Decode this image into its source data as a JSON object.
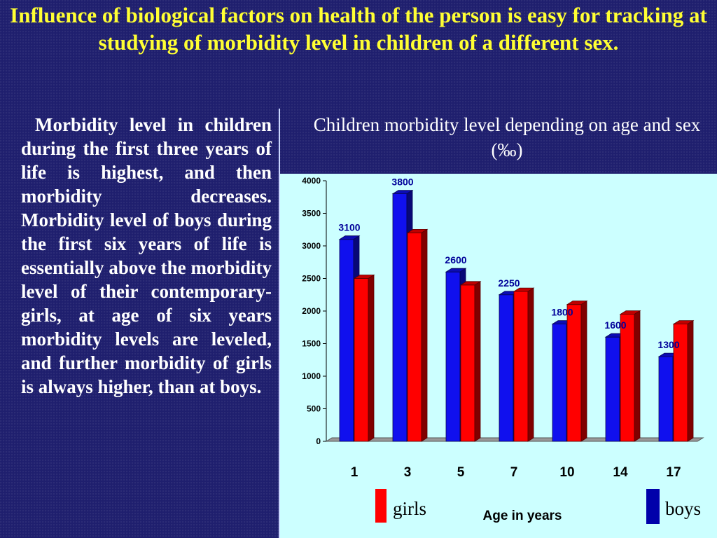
{
  "slide": {
    "title": "Influence of biological factors on health of the person is easy for tracking at studying of morbidity level in children of a different sex.",
    "body_text": "Morbidity level in children during the first three years of life is highest, and then morbidity decreases. Morbidity level of boys during the first six years of life is essentially above the morbidity level of their contemporary-girls, at age of six years morbidity levels are leveled, and further morbidity of girls is always higher, than at boys."
  },
  "colors": {
    "boys": "#1010ee",
    "girls": "#ff0000",
    "value_label": "#000099"
  },
  "chart_data": {
    "type": "bar",
    "title": "Children morbidity level depending on age and sex (‰)",
    "xlabel": "Age in years",
    "ylabel": "",
    "categories": [
      "1",
      "3",
      "5",
      "7",
      "10",
      "14",
      "17"
    ],
    "series": [
      {
        "name": "boys",
        "values": [
          3100,
          3800,
          2600,
          2250,
          1800,
          1600,
          1300
        ]
      },
      {
        "name": "girls",
        "values": [
          2500,
          3200,
          2400,
          2300,
          2100,
          1950,
          1800
        ]
      }
    ],
    "data_labels": [
      "3100",
      "3800",
      "2600",
      "2250",
      "1800",
      "1600",
      "1300"
    ],
    "ylim": [
      0,
      4000
    ],
    "yticks": [
      0,
      500,
      1000,
      1500,
      2000,
      2500,
      3000,
      3500,
      4000
    ],
    "grid": false,
    "legend_position": "bottom"
  }
}
